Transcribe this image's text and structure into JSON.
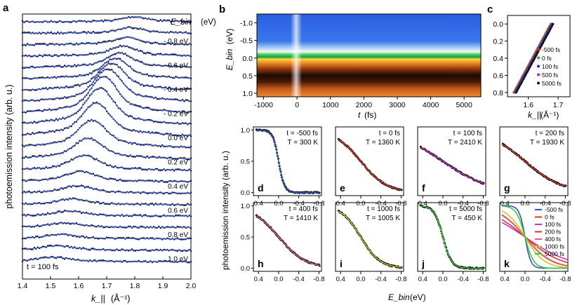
{
  "colors": {
    "data": "#111111",
    "fit": "#3f5fd8",
    "axis": "#000000"
  },
  "panel_letters": [
    "a",
    "b",
    "c",
    "d",
    "e",
    "f",
    "g",
    "h",
    "i",
    "j",
    "k"
  ],
  "chart_data": [
    {
      "panel": "a",
      "type": "line",
      "title": "",
      "xlabel": "k_||",
      "xunit": "(Å⁻¹)",
      "ylabel": "photoemission intensity  (arb. u.)",
      "xlim": [
        1.4,
        2.0
      ],
      "xticks": [
        "1.4",
        "1.5",
        "1.6",
        "1.7",
        "1.8",
        "1.9",
        "2.0"
      ],
      "header_label": "E_bin",
      "header_unit": "(eV)",
      "energy_labels": [
        "- 0.8 eV",
        "- 0.6 eV",
        "- 0.4 eV",
        "- 0.2 eV",
        "0.0 eV",
        "0.2 eV",
        "0.4 eV",
        "0.6 eV",
        "0.8 eV",
        "1.0 eV"
      ],
      "annotation": "t = 100 fs",
      "curve_count": 22,
      "peak_k_first": 1.8,
      "peak_k_last": 1.51
    },
    {
      "panel": "b",
      "type": "heatmap",
      "xlabel": "t",
      "xunit": "(fs)",
      "ylabel": "E_bin",
      "yunit": "(eV)",
      "xlim": [
        -1200,
        5500
      ],
      "ylim": [
        -1.25,
        1.1
      ],
      "xticks": [
        "-1000",
        "0",
        "1000",
        "2000",
        "3000",
        "4000",
        "5000"
      ],
      "yticks": [
        "-1.0",
        "-0.5",
        "0.0",
        "0.5",
        "1.0"
      ]
    },
    {
      "panel": "c",
      "type": "scatter",
      "xlabel": "k_||",
      "xunit": "(Å⁻¹)",
      "xticks": [
        "1.6",
        "1.7"
      ],
      "yticks": [
        "0.0",
        "0.2",
        "0.4",
        "0.6",
        "0.8"
      ],
      "xlim": [
        1.53,
        1.74
      ],
      "ylim": [
        -0.1,
        0.85
      ],
      "series": [
        {
          "name": "-500 fs",
          "color": "#e02020"
        },
        {
          "name": "0 fs",
          "color": "#22bb22"
        },
        {
          "name": "100 fs",
          "color": "#2828cc"
        },
        {
          "name": "500 fs",
          "color": "#aa22cc"
        },
        {
          "name": "5000 fs",
          "color": "#111111"
        }
      ]
    },
    {
      "panel": "d-k",
      "type": "line",
      "xlabel": "E_bin",
      "xunit": "(eV)",
      "ylabel": "photoemission intensity  (arb. u.)",
      "xticks": [
        "0.4",
        "0.0",
        "-0.4",
        "-0.8"
      ],
      "yticks": [
        "0.0",
        "0.5",
        "1.0"
      ],
      "top_yticks": [
        "1.0",
        "0.5",
        "0.0"
      ],
      "xlim": [
        0.5,
        -0.85
      ],
      "ylim": [
        -0.05,
        1.05
      ],
      "subpanels": [
        {
          "letter": "d",
          "t": "t = -500 fs",
          "T": "T = 300 K",
          "fit_color": "#2f55c8",
          "T_K": 300
        },
        {
          "letter": "e",
          "t": "t = 0 fs",
          "T": "T = 1360 K",
          "fit_color": "#e8342a",
          "T_K": 1360
        },
        {
          "letter": "f",
          "t": "t = 100 fs",
          "T": "T = 2410 K",
          "fit_color": "#cc33cc",
          "T_K": 2410
        },
        {
          "letter": "g",
          "t": "t = 200 fs",
          "T": "T = 1930 K",
          "fit_color": "#dd3322",
          "T_K": 1930
        },
        {
          "letter": "h",
          "t": "t = 400 fs",
          "T": "T = 1410 K",
          "fit_color": "#e0607a",
          "T_K": 1410
        },
        {
          "letter": "i",
          "t": "t = 1000 fs",
          "T": "T = 1005 K",
          "fit_color": "#c8c81e",
          "T_K": 1005
        },
        {
          "letter": "j",
          "t": "t = 5000 fs",
          "T": "T = 450 K",
          "fit_color": "#33cc33",
          "T_K": 450
        }
      ],
      "k_legend": [
        {
          "name": "-500 fs",
          "color": "#2f55c8",
          "T_K": 300
        },
        {
          "name": "0 fs",
          "color": "#e8342a",
          "T_K": 1360
        },
        {
          "name": "100 fs",
          "color": "#cc33cc",
          "T_K": 2410
        },
        {
          "name": "200 fs",
          "color": "#dd3322",
          "T_K": 1930
        },
        {
          "name": "400 fs",
          "color": "#e0607a",
          "T_K": 1410
        },
        {
          "name": "1000 fs",
          "color": "#c8c81e",
          "T_K": 1005
        },
        {
          "name": "5000 fs",
          "color": "#33cc33",
          "T_K": 450
        }
      ]
    }
  ]
}
